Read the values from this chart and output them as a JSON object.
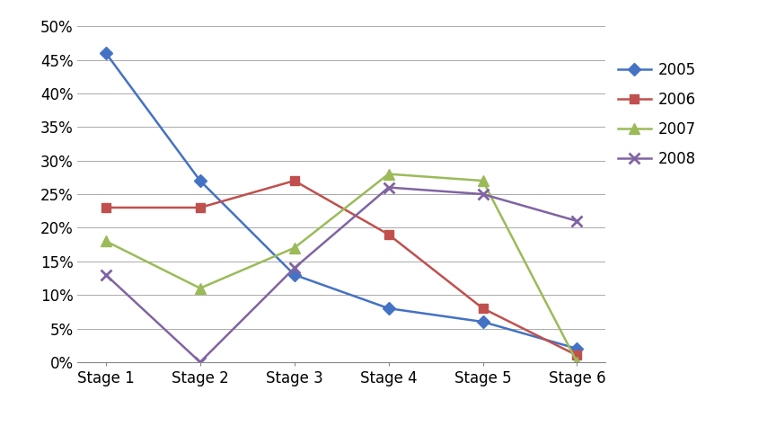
{
  "categories": [
    "Stage 1",
    "Stage 2",
    "Stage 3",
    "Stage 4",
    "Stage 5",
    "Stage 6"
  ],
  "series": [
    {
      "label": "2005",
      "values": [
        0.46,
        0.27,
        0.13,
        0.08,
        0.06,
        0.02
      ],
      "color": "#4472C4",
      "marker": "D",
      "markersize": 7
    },
    {
      "label": "2006",
      "values": [
        0.23,
        0.23,
        0.27,
        0.19,
        0.08,
        0.01
      ],
      "color": "#C0504D",
      "marker": "s",
      "markersize": 7
    },
    {
      "label": "2007",
      "values": [
        0.18,
        0.11,
        0.17,
        0.28,
        0.27,
        0.0
      ],
      "color": "#9BBB59",
      "marker": "^",
      "markersize": 8
    },
    {
      "label": "2008",
      "values": [
        0.13,
        0.0,
        0.14,
        0.26,
        0.25,
        0.21
      ],
      "color": "#8064A2",
      "marker": "x",
      "markersize": 9,
      "markeredgewidth": 2
    }
  ],
  "ylim": [
    0.0,
    0.52
  ],
  "yticks": [
    0.0,
    0.05,
    0.1,
    0.15,
    0.2,
    0.25,
    0.3,
    0.35,
    0.4,
    0.45,
    0.5
  ],
  "ytick_labels": [
    "0%",
    "5%",
    "10%",
    "15%",
    "20%",
    "25%",
    "30%",
    "35%",
    "40%",
    "45%",
    "50%"
  ],
  "background_color": "#FFFFFF",
  "grid_color": "#AAAAAA",
  "legend_fontsize": 12,
  "tick_fontsize": 12
}
